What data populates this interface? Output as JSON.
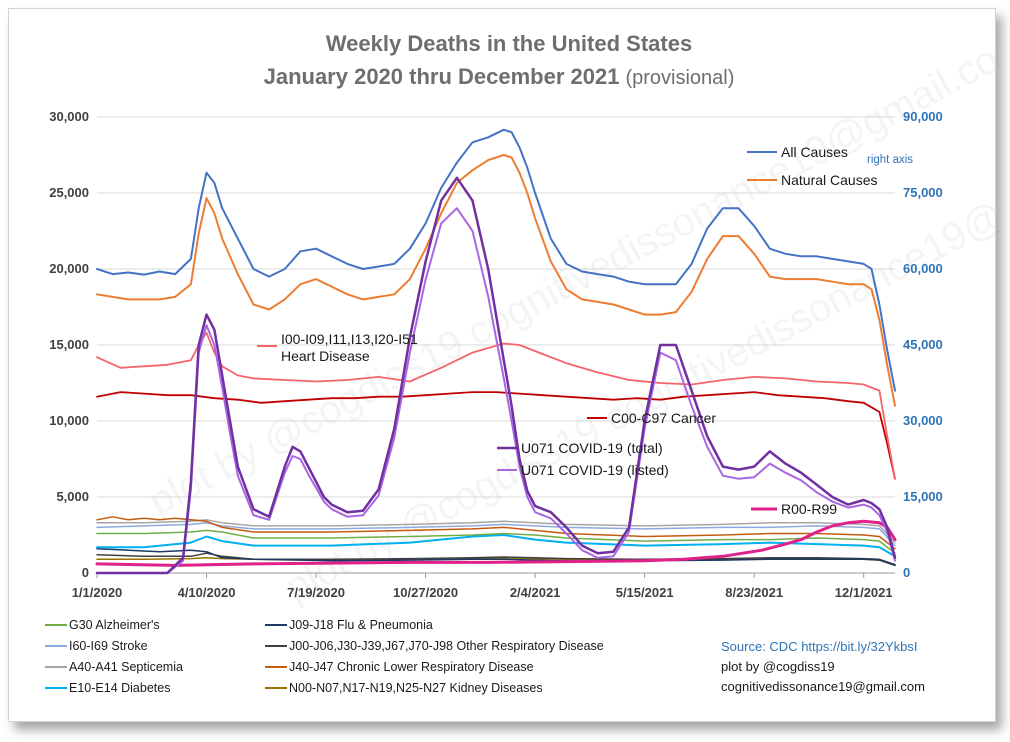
{
  "chart_data": {
    "type": "line",
    "title": "Weekly Deaths in the United States",
    "subtitle_main": "January 2020 thru December 2021",
    "subtitle_note": "(provisional)",
    "x_ticks": [
      "1/1/2020",
      "4/10/2020",
      "7/19/2020",
      "10/27/2020",
      "2/4/2021",
      "5/15/2021",
      "8/23/2021",
      "12/1/2021"
    ],
    "x_range_weeks": [
      0,
      102
    ],
    "x_tick_weeks": [
      0,
      14,
      28,
      42,
      56,
      70,
      84,
      98
    ],
    "ylim_left": [
      0,
      30000
    ],
    "y_ticks_left": [
      "0",
      "5,000",
      "10,000",
      "15,000",
      "20,000",
      "25,000",
      "30,000"
    ],
    "ylim_right": [
      0,
      90000
    ],
    "y_ticks_right": [
      "0",
      "15,000",
      "30,000",
      "45,000",
      "60,000",
      "75,000",
      "90,000"
    ],
    "right_axis_note": "right axis",
    "gridlines": "horizontal",
    "watermark": "plot by @cogdiss19   cognitivedissonance19@gmail.com",
    "series_labels": {
      "all_causes": "All Causes",
      "natural_causes": "Natural Causes",
      "heart_line1": "I00-I09,I11,I13,I20-I51",
      "heart_line2": "Heart Disease",
      "cancer": "C00-C97  Cancer",
      "covid_total": "U071 COVID-19 (total)",
      "covid_listed": "U071 COVID-19 (listed)",
      "r00": "R00-R99"
    },
    "series": [
      {
        "key": "all_causes",
        "axis": "right",
        "color": "#4472c4",
        "width": 2,
        "x": [
          0,
          2,
          4,
          6,
          8,
          10,
          12,
          13,
          14,
          15,
          16,
          18,
          20,
          22,
          24,
          26,
          28,
          30,
          32,
          34,
          36,
          38,
          40,
          42,
          44,
          46,
          48,
          50,
          52,
          53,
          54,
          55,
          56,
          58,
          60,
          62,
          64,
          66,
          68,
          70,
          72,
          74,
          76,
          78,
          80,
          82,
          84,
          86,
          88,
          90,
          92,
          94,
          96,
          98,
          99,
          100,
          101,
          102
        ],
        "y": [
          60000,
          59000,
          59300,
          58900,
          59500,
          59000,
          62000,
          72000,
          79000,
          77000,
          72000,
          66000,
          60000,
          58500,
          60000,
          63500,
          64000,
          62500,
          61000,
          60000,
          60500,
          61000,
          64000,
          69000,
          76000,
          81000,
          85000,
          86000,
          87500,
          87000,
          84000,
          80000,
          75000,
          66000,
          61000,
          59500,
          59000,
          58500,
          57500,
          57000,
          57000,
          57000,
          61000,
          68000,
          72000,
          72000,
          68500,
          64000,
          63000,
          62500,
          62500,
          62000,
          61500,
          61000,
          60000,
          53000,
          44000,
          36000
        ]
      },
      {
        "key": "natural_causes",
        "axis": "right",
        "color": "#ed7d31",
        "width": 2,
        "x": [
          0,
          2,
          4,
          6,
          8,
          10,
          12,
          13,
          14,
          15,
          16,
          18,
          20,
          22,
          24,
          26,
          28,
          30,
          32,
          34,
          36,
          38,
          40,
          42,
          44,
          46,
          48,
          50,
          52,
          53,
          54,
          55,
          56,
          58,
          60,
          62,
          64,
          66,
          68,
          70,
          72,
          74,
          76,
          78,
          80,
          82,
          84,
          86,
          88,
          90,
          92,
          94,
          96,
          98,
          99,
          100,
          101,
          102
        ],
        "y": [
          55000,
          54500,
          54000,
          54000,
          54000,
          54500,
          57000,
          67000,
          74000,
          71000,
          66000,
          59000,
          53000,
          52000,
          54000,
          57000,
          58000,
          56500,
          55000,
          54000,
          54500,
          55000,
          58000,
          64000,
          71000,
          77000,
          79500,
          81500,
          82500,
          82000,
          79000,
          75000,
          70000,
          61500,
          56000,
          54000,
          53500,
          53000,
          52000,
          51000,
          51000,
          51500,
          55500,
          62000,
          66500,
          66500,
          63000,
          58500,
          58000,
          58000,
          58000,
          57500,
          57000,
          57000,
          56000,
          50000,
          41000,
          33000
        ]
      },
      {
        "key": "heart_disease",
        "axis": "left",
        "color": "#f4646b",
        "width": 1.8,
        "x": [
          0,
          3,
          6,
          9,
          12,
          13,
          14,
          15,
          16,
          18,
          20,
          24,
          28,
          32,
          36,
          40,
          44,
          48,
          52,
          54,
          56,
          60,
          64,
          68,
          72,
          76,
          80,
          84,
          88,
          92,
          96,
          98,
          100,
          101,
          102
        ],
        "y": [
          14200,
          13500,
          13600,
          13700,
          14000,
          15000,
          15800,
          14500,
          13600,
          13000,
          12800,
          12700,
          12600,
          12700,
          12900,
          12600,
          13500,
          14500,
          15100,
          15000,
          14600,
          13800,
          13200,
          12700,
          12500,
          12400,
          12700,
          12900,
          12800,
          12600,
          12500,
          12400,
          12000,
          9000,
          6200
        ]
      },
      {
        "key": "cancer",
        "axis": "left",
        "color": "#c00000",
        "width": 1.8,
        "x": [
          0,
          3,
          6,
          9,
          12,
          15,
          18,
          21,
          24,
          27,
          30,
          33,
          36,
          39,
          42,
          45,
          48,
          51,
          54,
          57,
          60,
          63,
          66,
          69,
          72,
          75,
          78,
          81,
          84,
          87,
          90,
          93,
          96,
          98,
          100,
          101,
          102
        ],
        "y": [
          11600,
          11900,
          11800,
          11700,
          11700,
          11500,
          11400,
          11200,
          11300,
          11400,
          11500,
          11500,
          11600,
          11600,
          11700,
          11800,
          11900,
          11900,
          11800,
          11700,
          11600,
          11500,
          11400,
          11500,
          11400,
          11600,
          11700,
          11800,
          11900,
          11700,
          11600,
          11500,
          11300,
          11200,
          10600,
          8500,
          6200
        ]
      },
      {
        "key": "covid_total",
        "axis": "left",
        "color": "#7030a0",
        "width": 2.5,
        "x": [
          0,
          9,
          11,
          12,
          13,
          14,
          15,
          16,
          17,
          18,
          20,
          22,
          24,
          25,
          26,
          27,
          28,
          29,
          30,
          32,
          34,
          36,
          38,
          40,
          42,
          44,
          46,
          48,
          50,
          52,
          53,
          54,
          55,
          56,
          58,
          60,
          62,
          64,
          66,
          68,
          70,
          72,
          74,
          76,
          78,
          80,
          82,
          84,
          86,
          88,
          90,
          92,
          94,
          96,
          98,
          99,
          100,
          101,
          102
        ],
        "y": [
          0,
          0,
          1000,
          6000,
          15000,
          17000,
          16000,
          13000,
          10000,
          7000,
          4200,
          3700,
          7000,
          8300,
          8000,
          7000,
          6000,
          5000,
          4500,
          4000,
          4100,
          5500,
          9500,
          15500,
          20500,
          24500,
          26000,
          24500,
          20000,
          14000,
          11000,
          7500,
          5400,
          4400,
          4000,
          3000,
          1800,
          1300,
          1400,
          3000,
          10000,
          15000,
          15000,
          12000,
          9000,
          7000,
          6800,
          7000,
          8000,
          7200,
          6600,
          5800,
          5000,
          4500,
          4800,
          4600,
          4200,
          3000,
          1000
        ]
      },
      {
        "key": "covid_listed",
        "axis": "left",
        "color": "#a866e2",
        "width": 2,
        "x": [
          0,
          9,
          11,
          12,
          13,
          14,
          15,
          16,
          17,
          18,
          20,
          22,
          24,
          25,
          26,
          27,
          28,
          29,
          30,
          32,
          34,
          36,
          38,
          40,
          42,
          44,
          46,
          48,
          50,
          52,
          53,
          54,
          55,
          56,
          58,
          60,
          62,
          64,
          66,
          68,
          70,
          72,
          74,
          76,
          78,
          80,
          82,
          84,
          86,
          88,
          90,
          92,
          94,
          96,
          98,
          99,
          100,
          101,
          102
        ],
        "y": [
          0,
          0,
          800,
          5500,
          14500,
          16300,
          15000,
          12200,
          9200,
          6400,
          3800,
          3500,
          6600,
          7700,
          7500,
          6500,
          5600,
          4700,
          4200,
          3700,
          3800,
          5100,
          8900,
          14500,
          19300,
          23000,
          24000,
          22500,
          18200,
          12800,
          10000,
          7000,
          5000,
          4000,
          3600,
          2600,
          1500,
          1000,
          1100,
          2700,
          9500,
          14500,
          14000,
          11000,
          8300,
          6400,
          6200,
          6300,
          7200,
          6600,
          6100,
          5300,
          4700,
          4300,
          4500,
          4300,
          3800,
          2700,
          800
        ]
      },
      {
        "key": "r00",
        "axis": "left",
        "color": "#e0218a",
        "width": 3,
        "x": [
          0,
          10,
          20,
          30,
          40,
          50,
          60,
          70,
          75,
          80,
          85,
          88,
          90,
          92,
          94,
          96,
          98,
          100,
          101,
          102
        ],
        "y": [
          600,
          500,
          600,
          650,
          700,
          700,
          750,
          800,
          900,
          1100,
          1500,
          1900,
          2200,
          2700,
          3100,
          3300,
          3400,
          3300,
          3000,
          2200
        ]
      },
      {
        "key": "alzheimers",
        "axis": "left",
        "color": "#70ad47",
        "width": 1.5,
        "x": [
          0,
          6,
          12,
          14,
          16,
          20,
          30,
          40,
          48,
          52,
          56,
          60,
          70,
          80,
          86,
          92,
          98,
          100,
          102
        ],
        "y": [
          2600,
          2600,
          2700,
          2800,
          2700,
          2300,
          2300,
          2400,
          2500,
          2600,
          2500,
          2300,
          2100,
          2200,
          2200,
          2300,
          2200,
          2100,
          1300
        ]
      },
      {
        "key": "stroke",
        "axis": "left",
        "color": "#8ea9db",
        "width": 1.5,
        "x": [
          0,
          6,
          12,
          14,
          16,
          20,
          30,
          40,
          48,
          52,
          56,
          60,
          70,
          80,
          86,
          92,
          98,
          100,
          102
        ],
        "y": [
          3000,
          3100,
          3200,
          3300,
          3100,
          2900,
          2900,
          3000,
          3100,
          3200,
          3100,
          3000,
          2900,
          3000,
          3000,
          3100,
          3000,
          2900,
          1800
        ]
      },
      {
        "key": "septicemia",
        "axis": "left",
        "color": "#a6a6a6",
        "width": 1.5,
        "x": [
          0,
          6,
          12,
          14,
          16,
          20,
          30,
          40,
          48,
          52,
          56,
          60,
          70,
          80,
          86,
          92,
          98,
          100,
          102
        ],
        "y": [
          3300,
          3300,
          3400,
          3500,
          3300,
          3100,
          3100,
          3200,
          3300,
          3400,
          3300,
          3200,
          3100,
          3200,
          3300,
          3300,
          3200,
          3100,
          2000
        ]
      },
      {
        "key": "diabetes",
        "axis": "left",
        "color": "#00b0f0",
        "width": 2,
        "x": [
          0,
          6,
          12,
          14,
          16,
          20,
          30,
          40,
          48,
          52,
          56,
          60,
          70,
          80,
          86,
          92,
          98,
          100,
          102
        ],
        "y": [
          1700,
          1700,
          2000,
          2400,
          2100,
          1800,
          1800,
          2000,
          2400,
          2500,
          2200,
          2000,
          1800,
          1900,
          2000,
          1900,
          1800,
          1700,
          1100
        ]
      },
      {
        "key": "flu_pneumonia",
        "axis": "left",
        "color": "#1f3864",
        "width": 1.5,
        "x": [
          0,
          4,
          8,
          12,
          14,
          16,
          20,
          30,
          40,
          48,
          52,
          56,
          60,
          70,
          80,
          86,
          92,
          98,
          100,
          102
        ],
        "y": [
          1600,
          1500,
          1400,
          1500,
          1400,
          1000,
          900,
          800,
          850,
          900,
          900,
          850,
          800,
          800,
          850,
          900,
          900,
          900,
          850,
          500
        ]
      },
      {
        "key": "other_respiratory",
        "axis": "left",
        "color": "#404040",
        "width": 1.5,
        "x": [
          0,
          6,
          12,
          14,
          16,
          20,
          30,
          40,
          48,
          52,
          56,
          60,
          70,
          80,
          86,
          92,
          98,
          100,
          102
        ],
        "y": [
          1200,
          1100,
          1100,
          1300,
          1100,
          900,
          900,
          950,
          1000,
          1050,
          1000,
          950,
          900,
          950,
          1000,
          1000,
          950,
          900,
          550
        ]
      },
      {
        "key": "chronic_lower_resp",
        "axis": "left",
        "color": "#c55a11",
        "width": 1.5,
        "x": [
          0,
          2,
          4,
          6,
          8,
          10,
          12,
          14,
          16,
          20,
          30,
          40,
          48,
          52,
          56,
          60,
          70,
          80,
          86,
          92,
          98,
          100,
          102
        ],
        "y": [
          3500,
          3700,
          3500,
          3600,
          3500,
          3600,
          3500,
          3400,
          3000,
          2700,
          2700,
          2800,
          2900,
          3000,
          2800,
          2600,
          2400,
          2500,
          2600,
          2600,
          2500,
          2400,
          1600
        ]
      },
      {
        "key": "kidney",
        "axis": "left",
        "color": "#997300",
        "width": 1.5,
        "x": [
          0,
          6,
          12,
          14,
          16,
          20,
          30,
          40,
          48,
          52,
          56,
          60,
          70,
          80,
          86,
          92,
          98,
          100,
          102
        ],
        "y": [
          900,
          900,
          950,
          1000,
          950,
          900,
          850,
          900,
          950,
          1000,
          950,
          900,
          850,
          900,
          950,
          950,
          900,
          850,
          500
        ]
      }
    ]
  },
  "legend": [
    {
      "label": "G30 Alzheimer's",
      "color": "#70ad47"
    },
    {
      "label": "I60-I69  Stroke",
      "color": "#8ea9db"
    },
    {
      "label": "A40-A41 Septicemia",
      "color": "#a6a6a6"
    },
    {
      "label": "E10-E14 Diabetes",
      "color": "#00b0f0"
    },
    {
      "label": "J09-J18 Flu & Pneumonia",
      "color": "#1f3864"
    },
    {
      "label": "J00-J06,J30-J39,J67,J70-J98  Other Respiratory Disease",
      "color": "#404040"
    },
    {
      "label": "J40-J47 Chronic Lower Respiratory Disease",
      "color": "#c55a11"
    },
    {
      "label": "N00-N07,N17-N19,N25-N27 Kidney Diseases",
      "color": "#997300"
    }
  ],
  "source": {
    "line1": "Source:  CDC  https://bit.ly/32YkbsI",
    "line2": "plot by @cogdiss19",
    "line3": "cognitivedissonance19@gmail.com"
  }
}
